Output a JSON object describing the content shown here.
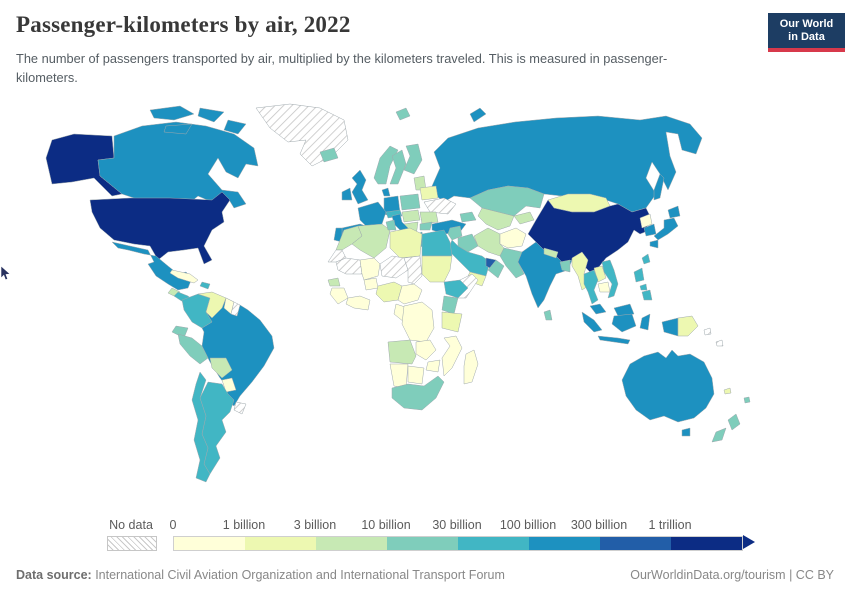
{
  "header": {
    "title": "Passenger-kilometers by air, 2022",
    "subtitle": "The number of passengers transported by air, multiplied by the kilometers traveled. This is measured in passenger-kilometers.",
    "logo": {
      "line1": "Our World",
      "line2": "in Data",
      "navy": "#1d3d63",
      "red": "#d7394b"
    }
  },
  "legend": {
    "no_data_label": "No data"
  },
  "footer": {
    "source_label": "Data source:",
    "source_text": " International Civil Aviation Organization and International Transport Forum",
    "right_text": "OurWorldinData.org/tourism | CC BY"
  },
  "chart_data": {
    "type": "choropleth",
    "title": "Passenger-kilometers by air, 2022",
    "unit": "passenger-kilometers",
    "year": 2022,
    "legend_position": "bottom",
    "no_data": {
      "label": "No data",
      "style": "gray-hatch"
    },
    "bins": [
      {
        "threshold_label": "0",
        "color": "#ffffd9",
        "range": "0 – 1 billion"
      },
      {
        "threshold_label": "1 billion",
        "color": "#edf8b1",
        "range": "1 – 3 billion"
      },
      {
        "threshold_label": "3 billion",
        "color": "#c7e9b4",
        "range": "3 – 10 billion"
      },
      {
        "threshold_label": "10 billion",
        "color": "#7fcdbb",
        "range": "10 – 30 billion"
      },
      {
        "threshold_label": "30 billion",
        "color": "#41b6c4",
        "range": "30 – 100 billion"
      },
      {
        "threshold_label": "100 billion",
        "color": "#1d91c0",
        "range": "100 – 300 billion"
      },
      {
        "threshold_label": "300 billion",
        "color": "#225ea8",
        "range": "300 billion – 1 trillion"
      },
      {
        "threshold_label": "1 trillion",
        "color": "#0c2c84",
        "range": "≥ 1 trillion"
      }
    ],
    "countries": [
      {
        "id": "usa",
        "name": "United States",
        "bin": 7
      },
      {
        "id": "canada",
        "name": "Canada",
        "bin": 5
      },
      {
        "id": "greenland",
        "name": "Greenland",
        "bin": "nd"
      },
      {
        "id": "iceland",
        "name": "Iceland",
        "bin": 3
      },
      {
        "id": "mexico",
        "name": "Mexico",
        "bin": 5
      },
      {
        "id": "guatemala",
        "name": "Guatemala",
        "bin": 2
      },
      {
        "id": "central-america",
        "name": "Central America (Costa Rica, Panama)",
        "bin": 4
      },
      {
        "id": "cuba",
        "name": "Cuba",
        "bin": 0
      },
      {
        "id": "hispaniola",
        "name": "Dominican Republic",
        "bin": 4
      },
      {
        "id": "colombia",
        "name": "Colombia",
        "bin": 4
      },
      {
        "id": "venezuela",
        "name": "Venezuela",
        "bin": 1
      },
      {
        "id": "guyana",
        "name": "Guyana",
        "bin": 0
      },
      {
        "id": "suriname",
        "name": "Suriname",
        "bin": "nd"
      },
      {
        "id": "ecuador",
        "name": "Ecuador",
        "bin": 3
      },
      {
        "id": "peru",
        "name": "Peru",
        "bin": 3
      },
      {
        "id": "brazil",
        "name": "Brazil",
        "bin": 5
      },
      {
        "id": "bolivia",
        "name": "Bolivia",
        "bin": 2
      },
      {
        "id": "paraguay",
        "name": "Paraguay",
        "bin": 0
      },
      {
        "id": "uruguay",
        "name": "Uruguay",
        "bin": "nd"
      },
      {
        "id": "argentina",
        "name": "Argentina",
        "bin": 4
      },
      {
        "id": "chile",
        "name": "Chile",
        "bin": 4
      },
      {
        "id": "uk",
        "name": "United Kingdom",
        "bin": 5
      },
      {
        "id": "ireland",
        "name": "Ireland",
        "bin": 5
      },
      {
        "id": "norway",
        "name": "Norway",
        "bin": 3
      },
      {
        "id": "sweden",
        "name": "Sweden",
        "bin": 3
      },
      {
        "id": "finland",
        "name": "Finland",
        "bin": 3
      },
      {
        "id": "denmark",
        "name": "Denmark",
        "bin": 5
      },
      {
        "id": "germany",
        "name": "Germany",
        "bin": 5
      },
      {
        "id": "poland",
        "name": "Poland",
        "bin": 3
      },
      {
        "id": "baltics",
        "name": "Baltic states",
        "bin": 2
      },
      {
        "id": "belarus",
        "name": "Belarus",
        "bin": 1
      },
      {
        "id": "ukraine",
        "name": "Ukraine",
        "bin": "nd"
      },
      {
        "id": "france",
        "name": "France",
        "bin": 5
      },
      {
        "id": "spain",
        "name": "Spain",
        "bin": 5
      },
      {
        "id": "portugal",
        "name": "Portugal",
        "bin": 5
      },
      {
        "id": "italy",
        "name": "Italy",
        "bin": 5
      },
      {
        "id": "alps",
        "name": "Switzerland & Austria",
        "bin": 4
      },
      {
        "id": "czech-hungary",
        "name": "Czechia, Slovakia & Hungary",
        "bin": 2
      },
      {
        "id": "romania",
        "name": "Romania",
        "bin": 2
      },
      {
        "id": "balkans",
        "name": "Western Balkans",
        "bin": 2
      },
      {
        "id": "bulgaria",
        "name": "Bulgaria",
        "bin": 3
      },
      {
        "id": "greece",
        "name": "Greece",
        "bin": 4
      },
      {
        "id": "turkey",
        "name": "Turkey",
        "bin": 5
      },
      {
        "id": "russia",
        "name": "Russia",
        "bin": 5
      },
      {
        "id": "svalbard",
        "name": "Svalbard",
        "bin": 3
      },
      {
        "id": "novaya-zemlya",
        "name": "Novaya Zemlya (Russia)",
        "bin": 5
      },
      {
        "id": "kazakhstan",
        "name": "Kazakhstan",
        "bin": 3
      },
      {
        "id": "turkmen-uzbek",
        "name": "Turkmenistan & Uzbekistan",
        "bin": 2
      },
      {
        "id": "kyrgyz-tajik",
        "name": "Kyrgyzstan & Tajikistan",
        "bin": 2
      },
      {
        "id": "caucasus",
        "name": "Caucasus",
        "bin": 3
      },
      {
        "id": "mongolia",
        "name": "Mongolia",
        "bin": 1
      },
      {
        "id": "china",
        "name": "China",
        "bin": 7
      },
      {
        "id": "north-korea",
        "name": "North Korea",
        "bin": 0
      },
      {
        "id": "south-korea",
        "name": "South Korea",
        "bin": 5
      },
      {
        "id": "japan",
        "name": "Japan",
        "bin": 5
      },
      {
        "id": "sakhalin",
        "name": "Sakhalin (Russia)",
        "bin": 5
      },
      {
        "id": "taiwan",
        "name": "Taiwan",
        "bin": 4
      },
      {
        "id": "india",
        "name": "India",
        "bin": 5
      },
      {
        "id": "nepal",
        "name": "Nepal",
        "bin": 2
      },
      {
        "id": "bangladesh",
        "name": "Bangladesh",
        "bin": 3
      },
      {
        "id": "sri-lanka",
        "name": "Sri Lanka",
        "bin": 3
      },
      {
        "id": "pakistan",
        "name": "Pakistan",
        "bin": 3
      },
      {
        "id": "afghanistan",
        "name": "Afghanistan",
        "bin": 0
      },
      {
        "id": "iran",
        "name": "Iran",
        "bin": 2
      },
      {
        "id": "iraq",
        "name": "Iraq",
        "bin": 3
      },
      {
        "id": "levant",
        "name": "Levant (Syria, Jordan, Israel)",
        "bin": 3
      },
      {
        "id": "saudi-arabia",
        "name": "Saudi Arabia",
        "bin": 4
      },
      {
        "id": "uae-qatar",
        "name": "United Arab Emirates & Qatar",
        "bin": 6
      },
      {
        "id": "oman",
        "name": "Oman",
        "bin": 3
      },
      {
        "id": "yemen",
        "name": "Yemen",
        "bin": 1
      },
      {
        "id": "morocco",
        "name": "Morocco",
        "bin": 2
      },
      {
        "id": "algeria",
        "name": "Algeria",
        "bin": 2
      },
      {
        "id": "tunisia",
        "name": "Tunisia",
        "bin": 3
      },
      {
        "id": "libya",
        "name": "Libya",
        "bin": 1
      },
      {
        "id": "egypt",
        "name": "Egypt",
        "bin": 4
      },
      {
        "id": "western-sahara",
        "name": "Western Sahara",
        "bin": "nd"
      },
      {
        "id": "mauritania",
        "name": "Mauritania",
        "bin": "nd"
      },
      {
        "id": "mali",
        "name": "Mali",
        "bin": 0
      },
      {
        "id": "niger",
        "name": "Niger",
        "bin": "nd"
      },
      {
        "id": "chad",
        "name": "Chad",
        "bin": "nd"
      },
      {
        "id": "sudan",
        "name": "Sudan",
        "bin": 1
      },
      {
        "id": "ethiopia",
        "name": "Ethiopia",
        "bin": 4
      },
      {
        "id": "somalia",
        "name": "Somalia",
        "bin": "nd"
      },
      {
        "id": "senegal",
        "name": "Senegal",
        "bin": 2
      },
      {
        "id": "guinea",
        "name": "Guinea region",
        "bin": 0
      },
      {
        "id": "ivory-ghana",
        "name": "Côte d'Ivoire & Ghana",
        "bin": 0
      },
      {
        "id": "burkina",
        "name": "Burkina Faso",
        "bin": 0
      },
      {
        "id": "nigeria",
        "name": "Nigeria",
        "bin": 1
      },
      {
        "id": "cameroon-car",
        "name": "Cameroon & Central African Rep.",
        "bin": 0
      },
      {
        "id": "gabon-congo",
        "name": "Gabon & Congo",
        "bin": 0
      },
      {
        "id": "drc",
        "name": "Democratic Republic of Congo",
        "bin": 0
      },
      {
        "id": "kenya",
        "name": "Kenya",
        "bin": 3
      },
      {
        "id": "tanzania",
        "name": "Tanzania",
        "bin": 1
      },
      {
        "id": "angola",
        "name": "Angola",
        "bin": 2
      },
      {
        "id": "zambia",
        "name": "Zambia",
        "bin": 0
      },
      {
        "id": "mozambique",
        "name": "Mozambique",
        "bin": 0
      },
      {
        "id": "zimbabwe",
        "name": "Zimbabwe",
        "bin": 0
      },
      {
        "id": "namibia",
        "name": "Namibia",
        "bin": 0
      },
      {
        "id": "botswana",
        "name": "Botswana",
        "bin": 0
      },
      {
        "id": "south-africa",
        "name": "South Africa",
        "bin": 3
      },
      {
        "id": "madagascar",
        "name": "Madagascar",
        "bin": 0
      },
      {
        "id": "myanmar",
        "name": "Myanmar",
        "bin": 1
      },
      {
        "id": "thailand",
        "name": "Thailand",
        "bin": 4
      },
      {
        "id": "laos",
        "name": "Laos",
        "bin": 1
      },
      {
        "id": "cambodia",
        "name": "Cambodia",
        "bin": 0
      },
      {
        "id": "vietnam",
        "name": "Vietnam",
        "bin": 4
      },
      {
        "id": "malaysia",
        "name": "Malaysia",
        "bin": 5
      },
      {
        "id": "indonesia",
        "name": "Indonesia",
        "bin": 5
      },
      {
        "id": "philippines",
        "name": "Philippines",
        "bin": 4
      },
      {
        "id": "papua-new-guinea",
        "name": "Papua New Guinea",
        "bin": 1
      },
      {
        "id": "solomon",
        "name": "Solomon Islands & Vanuatu",
        "bin": "nd"
      },
      {
        "id": "australia",
        "name": "Australia",
        "bin": 5
      },
      {
        "id": "new-zealand",
        "name": "New Zealand",
        "bin": 3
      },
      {
        "id": "fiji",
        "name": "Fiji",
        "bin": 3
      },
      {
        "id": "new-caledonia",
        "name": "New Caledonia",
        "bin": 1
      }
    ]
  }
}
